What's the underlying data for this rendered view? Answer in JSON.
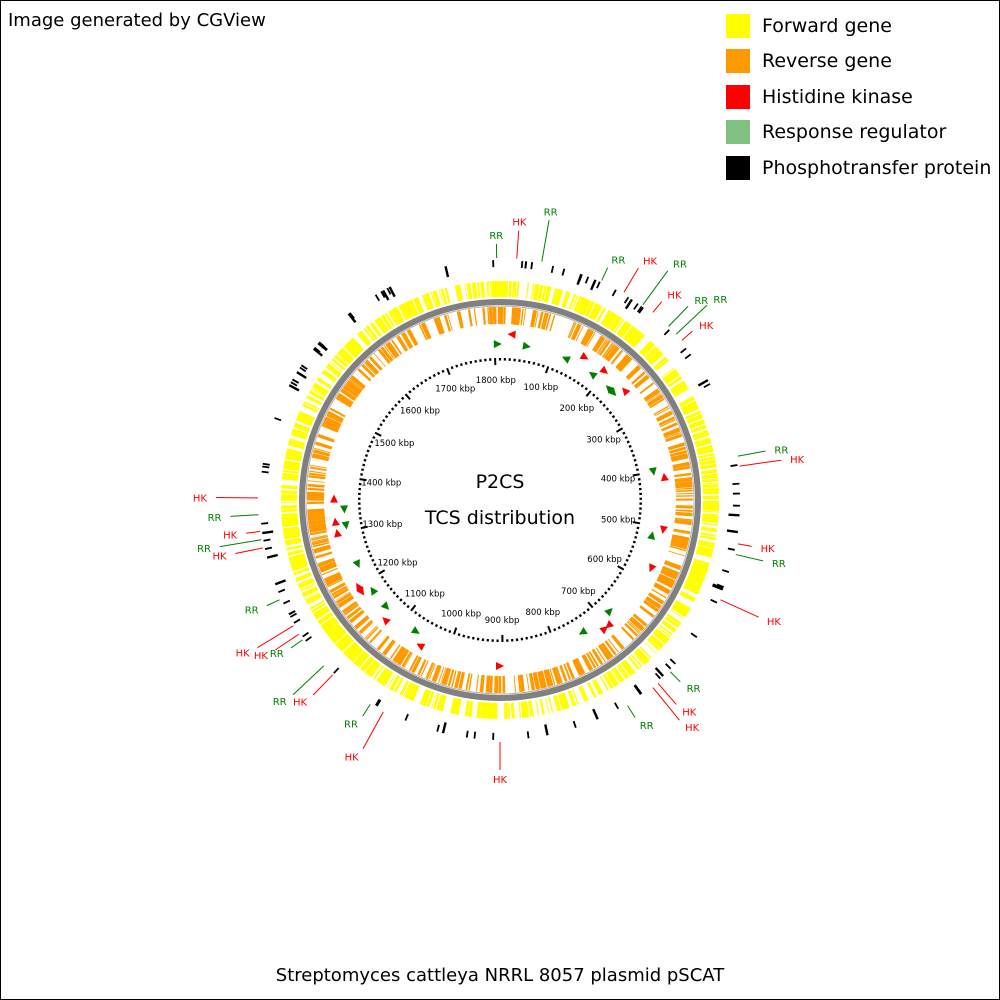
{
  "credit": "Image generated by CGView",
  "footer": "Streptomyces cattleya NRRL 8057 plasmid pSCAT",
  "center": {
    "line1": "P2CS",
    "line2": "TCS distribution"
  },
  "colors": {
    "forward": "#ffff00",
    "reverse": "#ff9900",
    "hk": "#ff0000",
    "rr": "#008000",
    "rr_legend": "#80c080",
    "phospho": "#000000",
    "backbone": "#808080"
  },
  "legend": [
    {
      "label": "Forward gene",
      "color": "#ffff00"
    },
    {
      "label": "Reverse gene",
      "color": "#ff9900"
    },
    {
      "label": "Histidine kinase",
      "color": "#ff0000"
    },
    {
      "label": "Response regulator",
      "color": "#80c080"
    },
    {
      "label": "Phosphotransfer protein",
      "color": "#000000"
    }
  ],
  "sequence_length_kbp": 1810,
  "tick_labels": [
    "100 kbp",
    "200 kbp",
    "300 kbp",
    "400 kbp",
    "500 kbp",
    "600 kbp",
    "700 kbp",
    "800 kbp",
    "900 kbp",
    "1000 kbp",
    "1100 kbp",
    "1200 kbp",
    "1300 kbp",
    "1400 kbp",
    "1500 kbp",
    "1600 kbp",
    "1700 kbp",
    "1800 kbp"
  ],
  "features": [
    {
      "type": "RR",
      "label": "RR",
      "kbp": 1806
    },
    {
      "type": "HK",
      "label": "HK",
      "kbp": 20
    },
    {
      "type": "RR",
      "label": "RR",
      "kbp": 50
    },
    {
      "type": "RR",
      "label": "RR",
      "kbp": 125
    },
    {
      "type": "HK",
      "label": "HK",
      "kbp": 155
    },
    {
      "type": "RR",
      "label": "RR",
      "kbp": 182
    },
    {
      "type": "HK",
      "label": "HK",
      "kbp": 197
    },
    {
      "type": "RR",
      "label": "RR",
      "kbp": 222
    },
    {
      "type": "RR",
      "label": "RR",
      "kbp": 235
    },
    {
      "type": "HK",
      "label": "HK",
      "kbp": 245
    },
    {
      "type": "RR",
      "label": "RR",
      "kbp": 400
    },
    {
      "type": "HK",
      "label": "HK",
      "kbp": 412
    },
    {
      "type": "HK",
      "label": "HK",
      "kbp": 505
    },
    {
      "type": "RR",
      "label": "RR",
      "kbp": 518
    },
    {
      "type": "HK",
      "label": "HK",
      "kbp": 575
    },
    {
      "type": "RR",
      "label": "RR",
      "kbp": 680
    },
    {
      "type": "HK",
      "label": "HK",
      "kbp": 700
    },
    {
      "type": "HK",
      "label": "HK",
      "kbp": 708
    },
    {
      "type": "RR",
      "label": "RR",
      "kbp": 745
    },
    {
      "type": "HK",
      "label": "HK",
      "kbp": 905
    },
    {
      "type": "HK",
      "label": "HK",
      "kbp": 1050
    },
    {
      "type": "RR",
      "label": "RR",
      "kbp": 1068
    },
    {
      "type": "HK",
      "label": "HK",
      "kbp": 1125
    },
    {
      "type": "RR",
      "label": "RR",
      "kbp": 1140
    },
    {
      "type": "RR",
      "label": "RR",
      "kbp": 1180
    },
    {
      "type": "HK",
      "label": "HK",
      "kbp": 1188
    },
    {
      "type": "HK",
      "label": "HK",
      "kbp": 1200
    },
    {
      "type": "RR",
      "label": "RR",
      "kbp": 1235
    },
    {
      "type": "HK",
      "label": "HK",
      "kbp": 1300
    },
    {
      "type": "RR",
      "label": "RR",
      "kbp": 1310
    },
    {
      "type": "HK",
      "label": "HK",
      "kbp": 1320
    },
    {
      "type": "RR",
      "label": "RR",
      "kbp": 1340
    },
    {
      "type": "HK",
      "label": "HK",
      "kbp": 1360
    }
  ]
}
